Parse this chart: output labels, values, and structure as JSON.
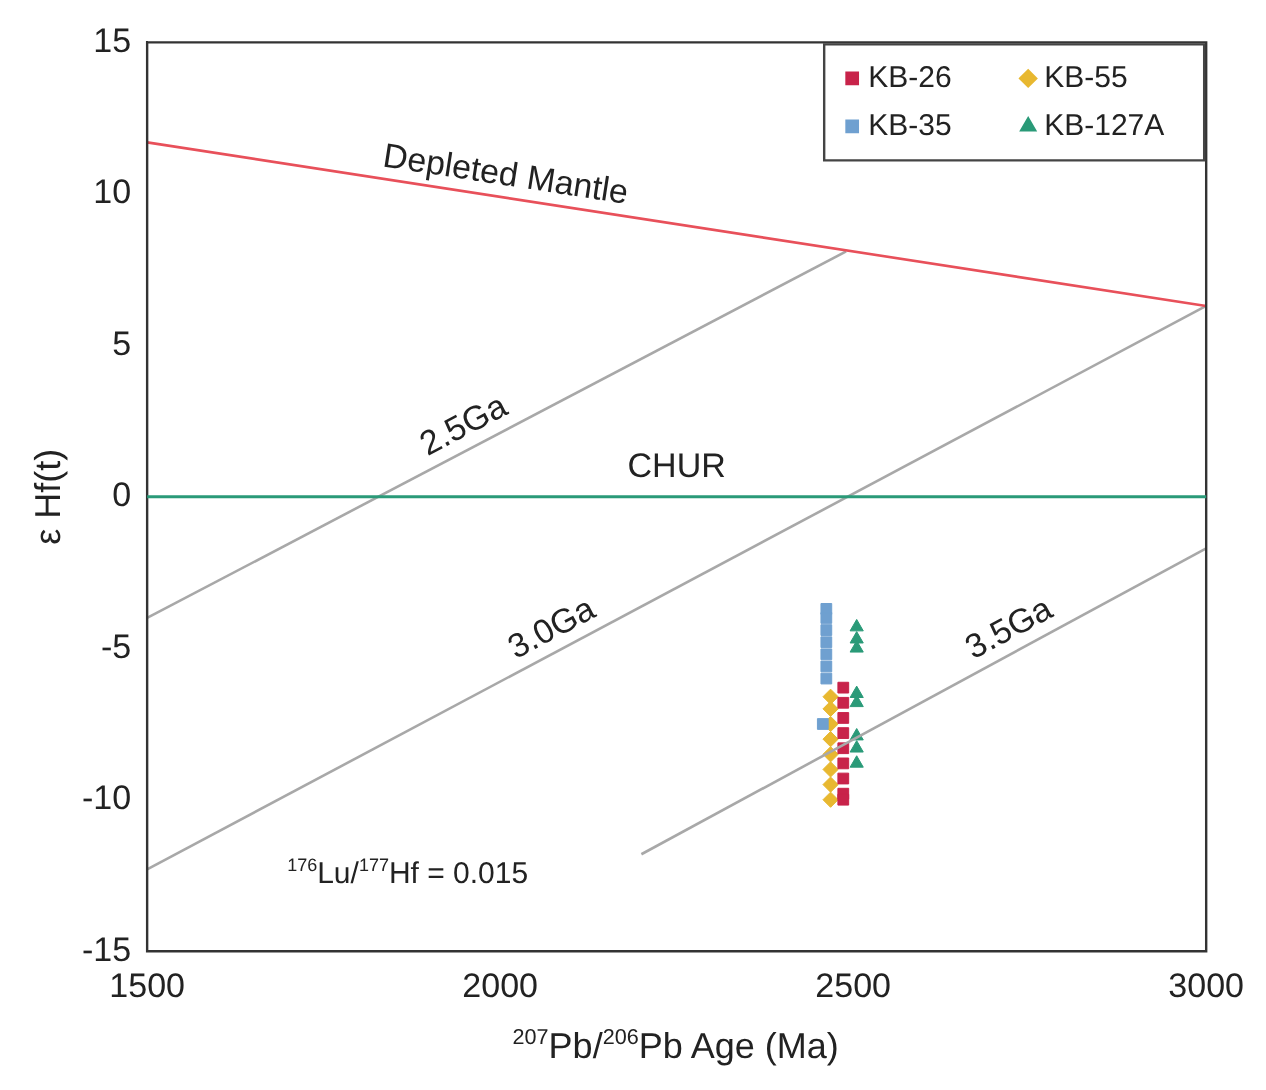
{
  "chart_data": {
    "type": "scatter",
    "xlabel": "$^{207}$Pb/$^{206}$Pb Age (Ma)",
    "ylabel": "ε Hf(t)",
    "xlim": [
      1500,
      3000
    ],
    "xticks": [
      1500,
      2000,
      2500,
      3000
    ],
    "ylim": [
      -15,
      15
    ],
    "yticks": [
      -15,
      -10,
      -5,
      0,
      5,
      10,
      15
    ],
    "grid": false,
    "legend": "top right",
    "series": [
      {
        "type": "line",
        "color": "#e8505a",
        "x": [
          1500,
          3000
        ],
        "values": [
          11.7,
          6.3
        ]
      },
      {
        "type": "line",
        "color": "#a8a8a8",
        "x": [
          1500,
          2490
        ],
        "values": [
          -4,
          8.1
        ]
      },
      {
        "type": "line",
        "color": "#a8a8a8",
        "x": [
          1500,
          3000
        ],
        "values": [
          -12.3,
          6.3
        ]
      },
      {
        "type": "line",
        "color": "#a8a8a8",
        "x": [
          2200,
          3000
        ],
        "values": [
          -11.8,
          -1.7
        ]
      },
      {
        "name": "KB-26",
        "marker": "square",
        "color": "#c8234a",
        "x": [
          2486,
          2486,
          2486,
          2486,
          2486,
          2486,
          2486,
          2486,
          2486
        ],
        "values": [
          -6.3,
          -6.8,
          -7.3,
          -7.8,
          -8.3,
          -8.8,
          -9.3,
          -9.8,
          -10.0
        ]
      },
      {
        "name": "KB-35",
        "marker": "square",
        "color": "#6fa0d0",
        "x": [
          2462,
          2462,
          2462,
          2462,
          2462,
          2462,
          2462,
          2457
        ],
        "values": [
          -3.7,
          -4.0,
          -4.4,
          -4.8,
          -5.2,
          -5.6,
          -6.0,
          -7.5
        ]
      },
      {
        "name": "KB-55",
        "marker": "diamond",
        "color": "#e8b830",
        "x": [
          2468,
          2468,
          2468,
          2468,
          2468,
          2468,
          2468,
          2468
        ],
        "values": [
          -6.6,
          -7.0,
          -7.5,
          -8.0,
          -8.5,
          -9.0,
          -9.5,
          -10.0
        ]
      },
      {
        "name": "KB-127A",
        "marker": "triangle",
        "color": "#2a9a78",
        "x": [
          2505,
          2505,
          2505,
          2505,
          2505,
          2505,
          2505,
          2505
        ],
        "values": [
          -4.3,
          -4.7,
          -5.0,
          -6.5,
          -6.8,
          -7.9,
          -8.3,
          -8.8
        ]
      }
    ],
    "ref_lines": [
      {
        "axis": "y",
        "value": 0,
        "label": "CHUR",
        "color": "#2a9a78"
      }
    ],
    "annotations": [
      {
        "text": "Depleted Mantle",
        "x": 2003,
        "y": 9.9
      },
      {
        "text": "2.5Ga",
        "x": 1963,
        "y": 1.7
      },
      {
        "text": "3.0Ga",
        "x": 2088,
        "y": -5.0
      },
      {
        "text": "3.5Ga",
        "x": 2736,
        "y": -5.0
      },
      "$^{176}$Lu/$^{177}$Hf = 0.015"
    ]
  }
}
